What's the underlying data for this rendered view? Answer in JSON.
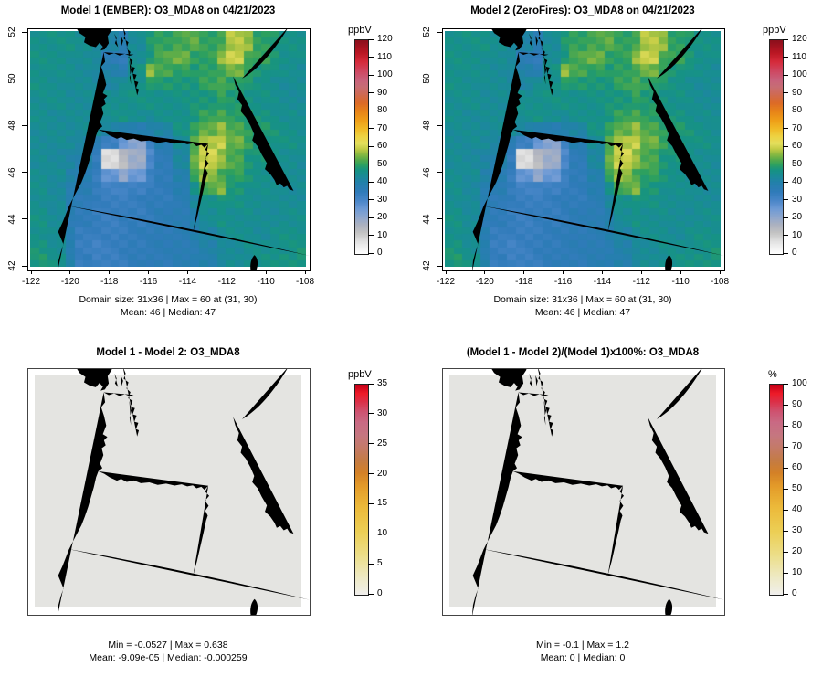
{
  "figure": {
    "background": "#ffffff"
  },
  "panels": [
    {
      "id": "model1",
      "title": "Model 1 (EMBER): O3_MDA8 on 04/21/2023",
      "caption_line1": "Domain size: 31x36 | Max = 60 at (31, 30)",
      "caption_line2": "Mean: 46 |  Median: 47",
      "colorbar": {
        "label": "ppbV",
        "min": 0,
        "max": 120,
        "step": 10,
        "palette": "spectral"
      },
      "x_ticks": [
        "-122",
        "-120",
        "-118",
        "-116",
        "-114",
        "-112",
        "-110",
        "-108"
      ],
      "y_ticks": [
        "42",
        "44",
        "46",
        "48",
        "50",
        "52"
      ],
      "map": "o3"
    },
    {
      "id": "model2",
      "title": "Model 2 (ZeroFires): O3_MDA8 on 04/21/2023",
      "caption_line1": "Domain size: 31x36 | Max = 60 at (31, 30)",
      "caption_line2": "Mean: 46 |  Median: 47",
      "colorbar": {
        "label": "ppbV",
        "min": 0,
        "max": 120,
        "step": 10,
        "palette": "spectral"
      },
      "x_ticks": [
        "-122",
        "-120",
        "-118",
        "-116",
        "-114",
        "-112",
        "-110",
        "-108"
      ],
      "y_ticks": [
        "42",
        "44",
        "46",
        "48",
        "50",
        "52"
      ],
      "map": "o3"
    },
    {
      "id": "difference",
      "title": "Model 1 - Model 2: O3_MDA8",
      "caption_line1": "Min = -0.0527 | Max = 0.638",
      "caption_line2": "Mean: -9.09e-05 |  Median: -0.000259",
      "colorbar": {
        "label": "ppbV",
        "min": 0,
        "max": 35,
        "step": 5,
        "palette": "warm"
      },
      "x_ticks": [],
      "y_ticks": [],
      "map": "flat"
    },
    {
      "id": "percent-difference",
      "title": "(Model 1 - Model 2)/(Model 1)x100%: O3_MDA8",
      "caption_line1": "Min = -0.1 | Max = 1.2",
      "caption_line2": "Mean: 0 |  Median: 0",
      "colorbar": {
        "label": "%",
        "min": 0,
        "max": 100,
        "step": 10,
        "palette": "warm"
      },
      "x_ticks": [],
      "y_ticks": [],
      "map": "flat"
    }
  ],
  "chart_data": {
    "type": "heatmap",
    "x_label_type": "longitude",
    "y_label_type": "latitude",
    "x_range": [
      -122,
      -108
    ],
    "y_range": [
      42,
      52
    ],
    "x_ticks": [
      -122,
      -120,
      -118,
      -116,
      -114,
      -112,
      -110,
      -108
    ],
    "y_ticks": [
      42,
      44,
      46,
      48,
      50,
      52
    ],
    "panels": [
      {
        "title": "Model 1 (EMBER): O3_MDA8 on 04/21/2023",
        "variable": "O3_MDA8",
        "date": "04/21/2023",
        "units": "ppbV",
        "domain_size": "31x36",
        "max": 60,
        "max_at": "(31, 30)",
        "mean": 46,
        "median": 47,
        "grid_ref": "o3_values",
        "colorbar_range": [
          0,
          120
        ]
      },
      {
        "title": "Model 2 (ZeroFires): O3_MDA8 on 04/21/2023",
        "variable": "O3_MDA8",
        "date": "04/21/2023",
        "units": "ppbV",
        "domain_size": "31x36",
        "max": 60,
        "max_at": "(31, 30)",
        "mean": 46,
        "median": 47,
        "grid_ref": "o3_values",
        "colorbar_range": [
          0,
          120
        ]
      },
      {
        "title": "Model 1 - Model 2: O3_MDA8",
        "units": "ppbV",
        "min": -0.0527,
        "max": 0.638,
        "mean": -9.09e-05,
        "median": -0.000259,
        "grid_ref": "flat_zero",
        "colorbar_range": [
          0,
          35
        ]
      },
      {
        "title": "(Model 1 - Model 2)/(Model 1)x100%: O3_MDA8",
        "units": "%",
        "min": -0.1,
        "max": 1.2,
        "mean": 0,
        "median": 0,
        "grid_ref": "flat_zero",
        "colorbar_range": [
          0,
          100
        ]
      }
    ],
    "o3_values": [
      [
        46,
        46,
        46,
        45,
        44,
        41,
        38,
        44,
        48,
        50,
        52,
        53,
        50,
        52,
        58,
        56,
        50,
        48,
        46,
        46
      ],
      [
        46,
        46,
        45,
        44,
        43,
        37,
        34,
        44,
        48,
        52,
        54,
        50,
        50,
        56,
        60,
        52,
        50,
        48,
        46,
        45
      ],
      [
        46,
        45,
        45,
        44,
        42,
        40,
        38,
        46,
        56,
        52,
        50,
        48,
        50,
        52,
        54,
        50,
        48,
        46,
        45,
        44
      ],
      [
        46,
        45,
        44,
        44,
        43,
        42,
        44,
        46,
        50,
        48,
        48,
        48,
        50,
        52,
        50,
        48,
        46,
        45,
        44,
        44
      ],
      [
        45,
        45,
        44,
        44,
        44,
        45,
        46,
        46,
        46,
        46,
        46,
        47,
        48,
        50,
        48,
        47,
        46,
        45,
        44,
        44
      ],
      [
        45,
        44,
        44,
        44,
        44,
        45,
        46,
        45,
        44,
        45,
        46,
        48,
        50,
        52,
        50,
        48,
        47,
        46,
        45,
        44
      ],
      [
        44,
        44,
        44,
        44,
        43,
        42,
        40,
        38,
        40,
        42,
        46,
        50,
        54,
        56,
        52,
        50,
        48,
        47,
        46,
        45
      ],
      [
        44,
        44,
        43,
        42,
        38,
        32,
        26,
        22,
        32,
        38,
        44,
        52,
        58,
        60,
        54,
        50,
        48,
        47,
        46,
        45
      ],
      [
        44,
        43,
        42,
        40,
        34,
        8,
        14,
        18,
        30,
        36,
        42,
        54,
        60,
        56,
        52,
        48,
        47,
        46,
        45,
        44
      ],
      [
        45,
        44,
        40,
        38,
        34,
        26,
        20,
        26,
        32,
        35,
        40,
        50,
        56,
        52,
        50,
        47,
        46,
        45,
        44,
        44
      ],
      [
        45,
        43,
        39,
        37,
        34,
        32,
        31,
        32,
        34,
        35,
        38,
        46,
        52,
        55,
        48,
        46,
        45,
        45,
        44,
        44
      ],
      [
        45,
        43,
        38,
        36,
        34,
        33,
        33,
        34,
        35,
        35,
        37,
        42,
        46,
        48,
        46,
        45,
        45,
        44,
        44,
        44
      ],
      [
        46,
        44,
        37,
        35,
        34,
        33,
        34,
        34,
        35,
        36,
        37,
        40,
        44,
        46,
        45,
        45,
        44,
        44,
        45,
        45
      ],
      [
        46,
        44,
        38,
        34,
        33,
        33,
        34,
        35,
        35,
        36,
        37,
        39,
        42,
        44,
        45,
        45,
        44,
        45,
        46,
        46
      ],
      [
        47,
        45,
        38,
        33,
        32,
        33,
        34,
        35,
        36,
        36,
        37,
        38,
        40,
        43,
        44,
        45,
        45,
        46,
        46,
        47
      ],
      [
        48,
        46,
        40,
        34,
        32,
        33,
        34,
        35,
        36,
        36,
        37,
        38,
        40,
        42,
        44,
        45,
        46,
        46,
        47,
        48
      ]
    ],
    "flat_fill": "#e4e4e1",
    "palettes": {
      "spectral": {
        "mode": "absolute",
        "stops": [
          [
            0,
            "#ffffff"
          ],
          [
            6,
            "#e6e6e6"
          ],
          [
            12,
            "#c2c2c2"
          ],
          [
            16,
            "#adb2c0"
          ],
          [
            20,
            "#92a8cc"
          ],
          [
            25,
            "#6f9bd6"
          ],
          [
            30,
            "#4886c8"
          ],
          [
            35,
            "#2f7bb9"
          ],
          [
            40,
            "#2380ab"
          ],
          [
            44,
            "#198c95"
          ],
          [
            47,
            "#169383"
          ],
          [
            50,
            "#2da05f"
          ],
          [
            53,
            "#58ab4a"
          ],
          [
            56,
            "#8cba41"
          ],
          [
            59,
            "#c4cc45"
          ],
          [
            62,
            "#e4df5d"
          ],
          [
            66,
            "#eed242"
          ],
          [
            70,
            "#f0bc28"
          ],
          [
            75,
            "#ef9f18"
          ],
          [
            80,
            "#e88418"
          ],
          [
            85,
            "#dc6a28"
          ],
          [
            90,
            "#cf6a55"
          ],
          [
            94,
            "#c76d74"
          ],
          [
            98,
            "#c8617c"
          ],
          [
            103,
            "#cf4660"
          ],
          [
            108,
            "#d62b3b"
          ],
          [
            113,
            "#bb1724"
          ],
          [
            120,
            "#8c0f1c"
          ]
        ]
      },
      "warm": {
        "mode": "fraction",
        "stops": [
          [
            0,
            "#f0efec"
          ],
          [
            0.09,
            "#eee9c0"
          ],
          [
            0.18,
            "#ecdf8d"
          ],
          [
            0.3,
            "#eccf55"
          ],
          [
            0.42,
            "#ecb93a"
          ],
          [
            0.52,
            "#e39a29"
          ],
          [
            0.58,
            "#d48127"
          ],
          [
            0.64,
            "#c47b45"
          ],
          [
            0.7,
            "#c47a68"
          ],
          [
            0.76,
            "#c57780"
          ],
          [
            0.82,
            "#c96a84"
          ],
          [
            0.87,
            "#ce5572"
          ],
          [
            0.92,
            "#dc3048"
          ],
          [
            0.96,
            "#ee1a28"
          ],
          [
            1,
            "#c40018"
          ]
        ]
      }
    }
  }
}
